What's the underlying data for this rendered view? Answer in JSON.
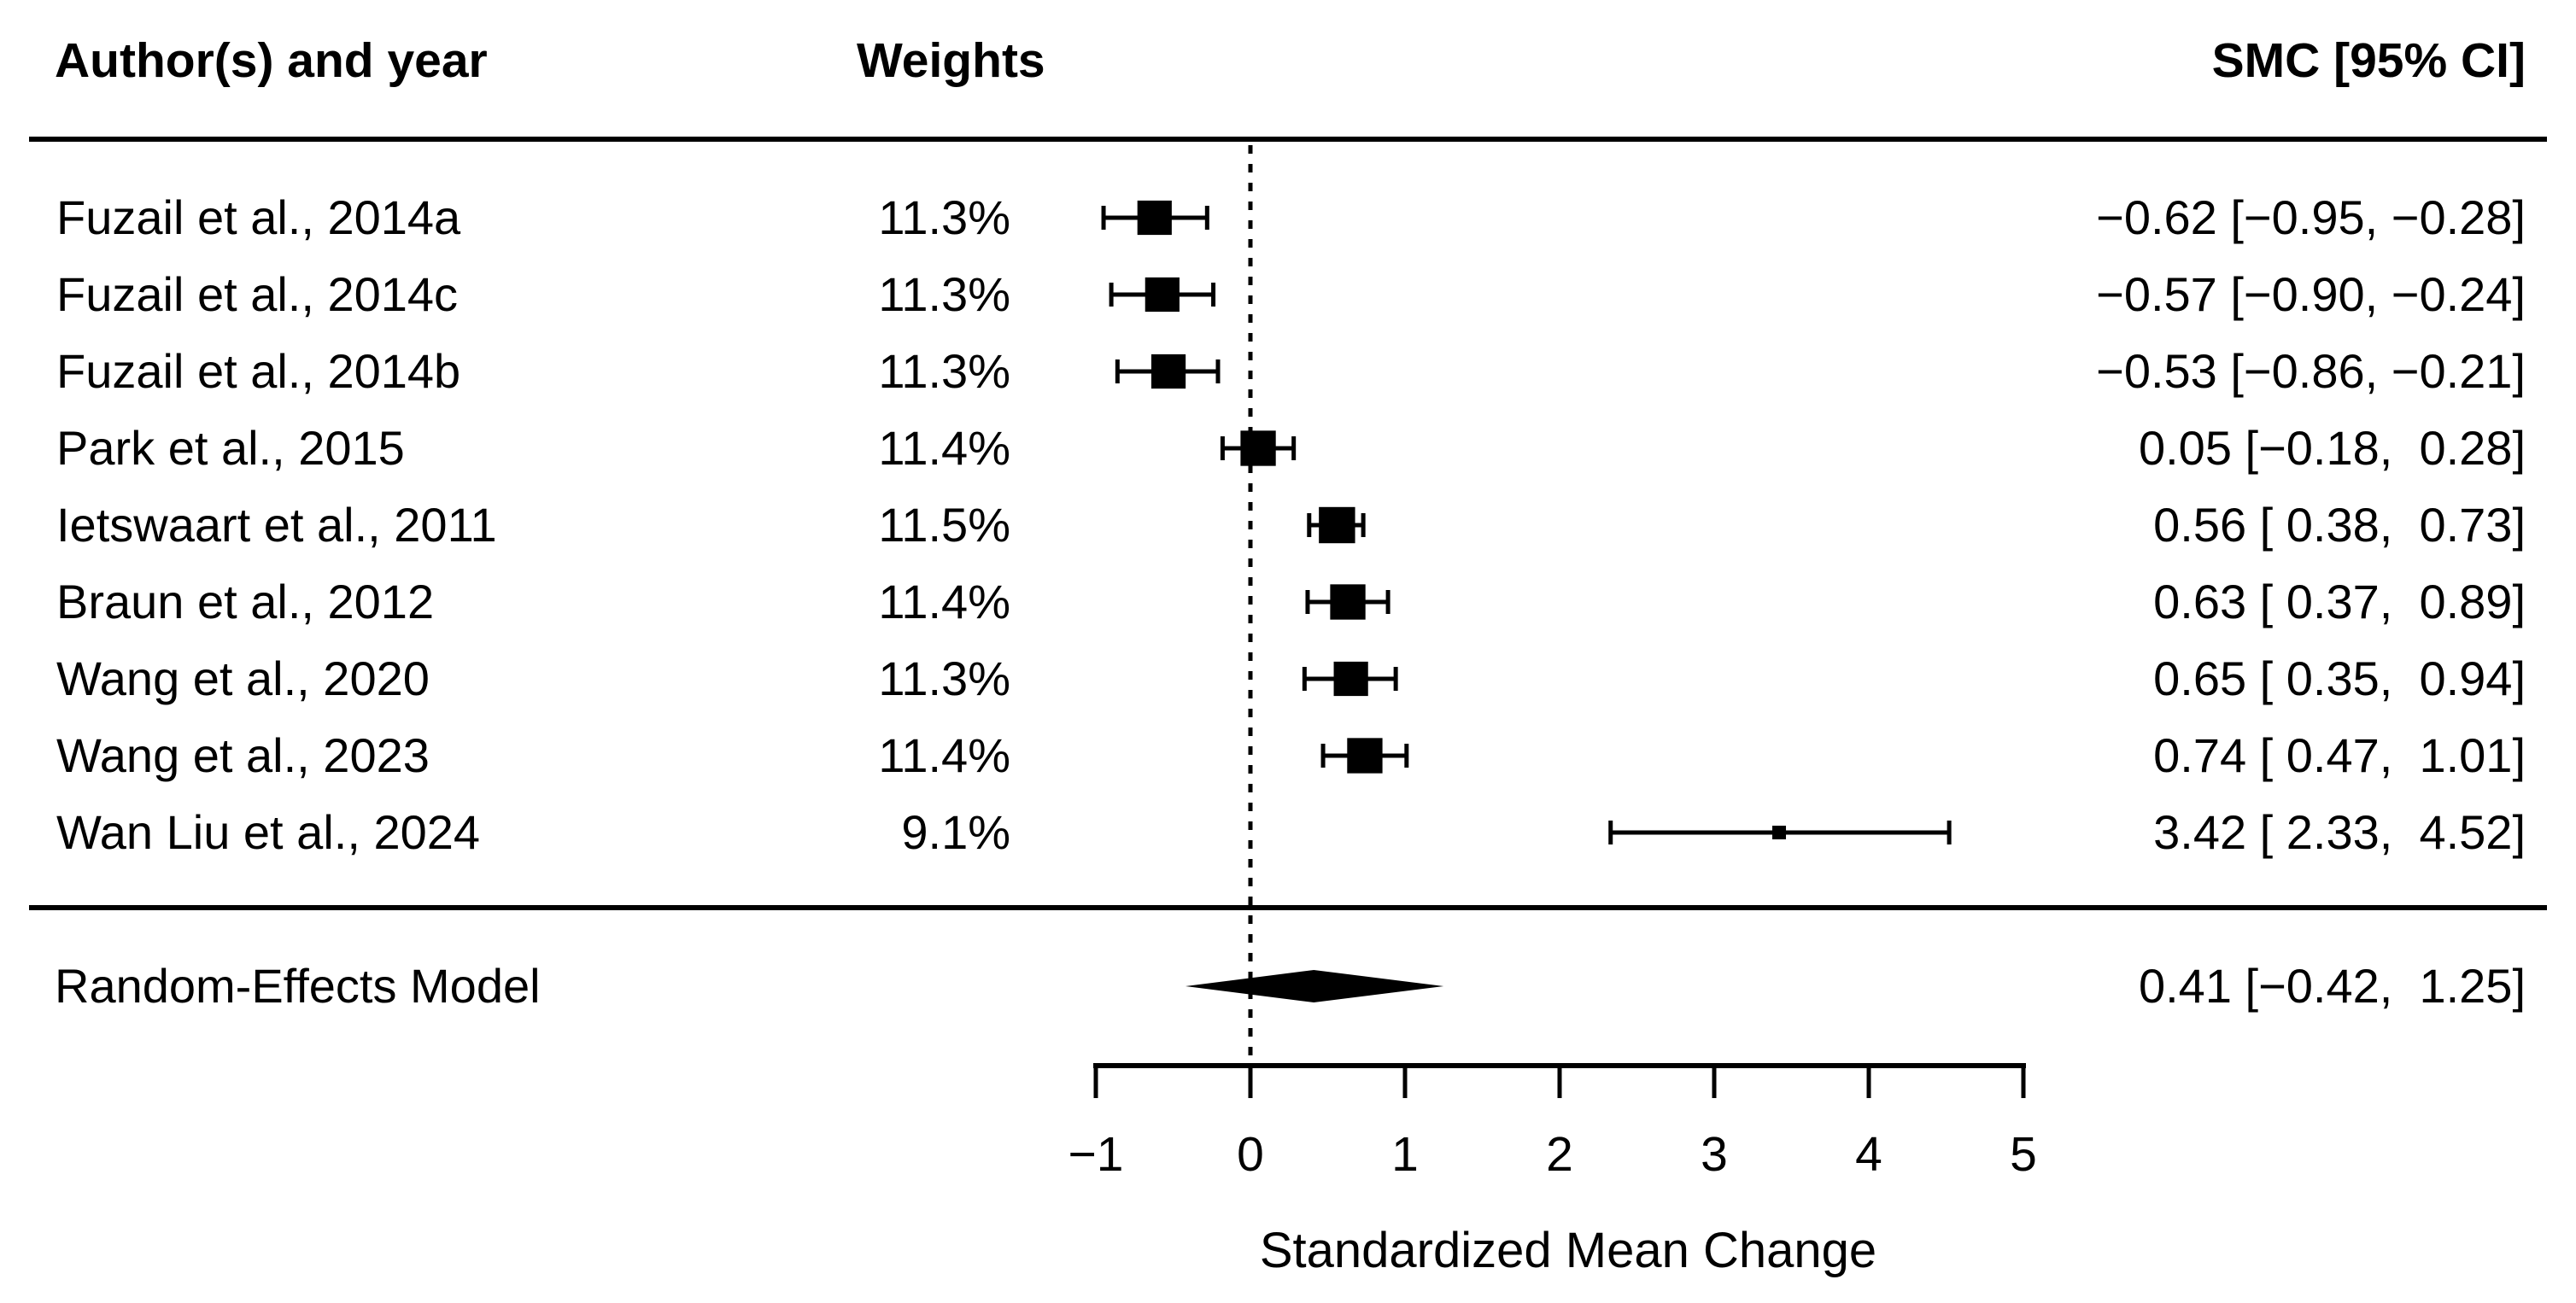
{
  "columns": {
    "author": "Author(s) and year",
    "weights": "Weights",
    "smc": "SMC [95% CI]"
  },
  "chart_data": {
    "type": "forest",
    "xlabel": "Standardized Mean Change",
    "xlim": [
      -1,
      5
    ],
    "x_ticks": [
      -1,
      0,
      1,
      2,
      3,
      4,
      5
    ],
    "x_tick_labels": [
      "−1",
      "0",
      "1",
      "2",
      "3",
      "4",
      "5"
    ],
    "reference_line_x": 0,
    "grid": false,
    "colors": {
      "foreground": "#000000",
      "background": "#ffffff"
    },
    "studies": [
      {
        "label": "Fuzail et al., 2014a",
        "weight_pct": 11.3,
        "weight_label": "11.3%",
        "est": -0.62,
        "ci_low": -0.95,
        "ci_high": -0.28,
        "annotation": "−0.62 [−0.95, −0.28]"
      },
      {
        "label": "Fuzail et al., 2014c",
        "weight_pct": 11.3,
        "weight_label": "11.3%",
        "est": -0.57,
        "ci_low": -0.9,
        "ci_high": -0.24,
        "annotation": "−0.57 [−0.90, −0.24]"
      },
      {
        "label": "Fuzail et al., 2014b",
        "weight_pct": 11.3,
        "weight_label": "11.3%",
        "est": -0.53,
        "ci_low": -0.86,
        "ci_high": -0.21,
        "annotation": "−0.53 [−0.86, −0.21]"
      },
      {
        "label": "Park et al., 2015",
        "weight_pct": 11.4,
        "weight_label": "11.4%",
        "est": 0.05,
        "ci_low": -0.18,
        "ci_high": 0.28,
        "annotation": "0.05 [−0.18,  0.28]"
      },
      {
        "label": "Ietswaart et al., 2011",
        "weight_pct": 11.5,
        "weight_label": "11.5%",
        "est": 0.56,
        "ci_low": 0.38,
        "ci_high": 0.73,
        "annotation": "0.56 [ 0.38,  0.73]"
      },
      {
        "label": "Braun et al., 2012",
        "weight_pct": 11.4,
        "weight_label": "11.4%",
        "est": 0.63,
        "ci_low": 0.37,
        "ci_high": 0.89,
        "annotation": "0.63 [ 0.37,  0.89]"
      },
      {
        "label": "Wang et al., 2020",
        "weight_pct": 11.3,
        "weight_label": "11.3%",
        "est": 0.65,
        "ci_low": 0.35,
        "ci_high": 0.94,
        "annotation": "0.65 [ 0.35,  0.94]"
      },
      {
        "label": "Wang et al., 2023",
        "weight_pct": 11.4,
        "weight_label": "11.4%",
        "est": 0.74,
        "ci_low": 0.47,
        "ci_high": 1.01,
        "annotation": "0.74 [ 0.47,  1.01]"
      },
      {
        "label": "Wan Liu et al., 2024",
        "weight_pct": 9.1,
        "weight_label": "9.1%",
        "est": 3.42,
        "ci_low": 2.33,
        "ci_high": 4.52,
        "annotation": "3.42 [ 2.33,  4.52]"
      }
    ],
    "summary": {
      "label": "Random-Effects Model",
      "est": 0.41,
      "ci_low": -0.42,
      "ci_high": 1.25,
      "annotation": "0.41 [−0.42,  1.25]"
    }
  }
}
